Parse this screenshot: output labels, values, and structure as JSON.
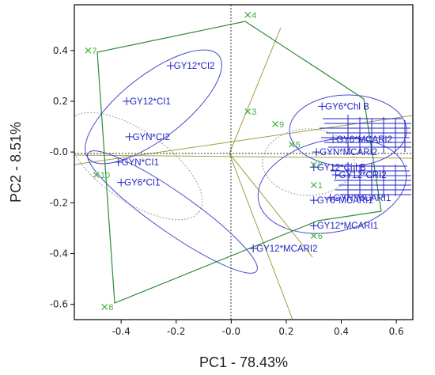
{
  "chart_data": {
    "type": "scatter",
    "title": "",
    "xlabel": "PC1 - 78.43%",
    "ylabel": "PC2 - 8.51%",
    "xlim": [
      -0.57,
      0.66
    ],
    "ylim": [
      -0.66,
      0.58
    ],
    "xticks": [
      -0.4,
      -0.2,
      -0.0,
      0.2,
      0.4,
      0.6
    ],
    "yticks": [
      0.4,
      0.2,
      -0.0,
      -0.2,
      -0.4,
      -0.6
    ],
    "xtick_labels": [
      "-0.4",
      "-0.2",
      "-0.0",
      "0.2",
      "0.4",
      "0.6"
    ],
    "ytick_labels": [
      "0.4",
      "0.2",
      "-0.0",
      "-0.2",
      "-0.4",
      "-0.6"
    ],
    "grid": false,
    "colors": {
      "environment": "#3bb03b",
      "hull": "#2f8a3a",
      "genotype": "#2323c8",
      "ellipse": "#4a4ad0",
      "sector_line": "#a0a040",
      "dotted": "#9a9a9a",
      "origin": "#333333"
    },
    "series": [
      {
        "name": "",
        "marker": "x",
        "points": [
          {
            "label": "1",
            "x": 0.3,
            "y": -0.13
          },
          {
            "label": "2",
            "x": 0.3,
            "y": -0.05
          },
          {
            "label": "3",
            "x": 0.06,
            "y": 0.16
          },
          {
            "label": "4",
            "x": 0.06,
            "y": 0.54
          },
          {
            "label": "5",
            "x": 0.22,
            "y": 0.03
          },
          {
            "label": "6",
            "x": 0.3,
            "y": -0.33
          },
          {
            "label": "7",
            "x": -0.52,
            "y": 0.4
          },
          {
            "label": "8",
            "x": -0.46,
            "y": -0.61
          },
          {
            "label": "9",
            "x": 0.16,
            "y": 0.11
          },
          {
            "label": "10",
            "x": -0.49,
            "y": -0.09
          }
        ]
      },
      {
        "name": "",
        "marker": "+",
        "points": [
          {
            "label": "GY12*CI2",
            "x": -0.22,
            "y": 0.34
          },
          {
            "label": "GY12*CI1",
            "x": -0.38,
            "y": 0.2
          },
          {
            "label": "GYN*CI2",
            "x": -0.37,
            "y": 0.06
          },
          {
            "label": "GYN*CI1",
            "x": -0.41,
            "y": -0.04
          },
          {
            "label": "GY6*CI1",
            "x": -0.4,
            "y": -0.12
          },
          {
            "label": "GY6*Chl B",
            "x": 0.33,
            "y": 0.18
          },
          {
            "label": "GY6*MCARI1",
            "x": 0.3,
            "y": -0.19
          },
          {
            "label": "GY12*MCARI1",
            "x": 0.3,
            "y": -0.29
          },
          {
            "label": "GY12*MCARI2",
            "x": 0.08,
            "y": -0.38
          },
          {
            "label": "GYN*MCARI2",
            "x": 0.31,
            "y": 0.0
          },
          {
            "label": "GY12*Chl B",
            "x": 0.3,
            "y": -0.06
          },
          {
            "label": "GY12*CRI2",
            "x": 0.38,
            "y": -0.09
          },
          {
            "label": "GYN*MCARI1",
            "x": 0.36,
            "y": -0.18
          },
          {
            "label": "GY6*MCARI2",
            "x": 0.37,
            "y": 0.05
          }
        ]
      }
    ]
  }
}
